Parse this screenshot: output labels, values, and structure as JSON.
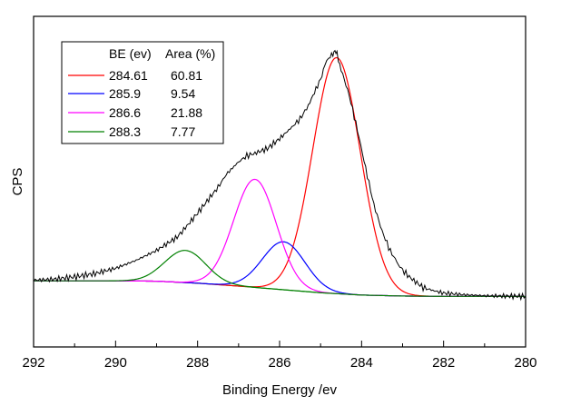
{
  "chart_data": {
    "type": "line",
    "xlabel": "Binding Energy /ev",
    "ylabel": "CPS",
    "xlim": [
      292,
      280
    ],
    "x_reversed": true,
    "y_ticks_shown": false,
    "grid": false,
    "x_ticks": [
      "292",
      "290",
      "288",
      "286",
      "284",
      "282",
      "280"
    ],
    "legend": {
      "position": "top-left",
      "headers": [
        "BE (ev)",
        "Area (%)"
      ],
      "rows": [
        {
          "be": "284.61",
          "area": "60.81",
          "color": "#ff0000"
        },
        {
          "be": "285.9",
          "area": "9.54",
          "color": "#0000ff"
        },
        {
          "be": "286.6",
          "area": "21.88",
          "color": "#ff00ff"
        },
        {
          "be": "288.3",
          "area": "7.77",
          "color": "#008000"
        }
      ]
    },
    "ylim": [
      0,
      1
    ],
    "background": {
      "color": "#008000",
      "x": [
        292,
        290,
        289,
        288,
        287,
        286,
        285,
        284,
        283,
        282,
        281,
        280
      ],
      "y": [
        0.2,
        0.2,
        0.199,
        0.193,
        0.184,
        0.174,
        0.164,
        0.157,
        0.154,
        0.153,
        0.153,
        0.153
      ]
    },
    "components": [
      {
        "center": 284.61,
        "peak_y": 0.875,
        "sigma": 0.58,
        "color": "#ff0000"
      },
      {
        "center": 285.9,
        "peak_y": 0.318,
        "sigma": 0.52,
        "color": "#0000ff"
      },
      {
        "center": 286.6,
        "peak_y": 0.507,
        "sigma": 0.52,
        "color": "#ff00ff"
      },
      {
        "center": 288.3,
        "peak_y": 0.292,
        "sigma": 0.5,
        "color": "#008000"
      }
    ],
    "series": [
      {
        "color": "#000000",
        "x": [
          292,
          291.5,
          291,
          290.5,
          290,
          289.5,
          289,
          288.5,
          288.3,
          288,
          287.5,
          287.3,
          287,
          286.8,
          286.6,
          286.3,
          286,
          285.7,
          285.5,
          285.3,
          285,
          284.9,
          284.8,
          284.7,
          284.65,
          284.6,
          284.5,
          284.3,
          284.1,
          283.9,
          283.7,
          283.5,
          283.3,
          283.1,
          283,
          282.8,
          282.5,
          282.3,
          282,
          281.5,
          281,
          280.5,
          280
        ],
        "y": [
          0.202,
          0.205,
          0.212,
          0.222,
          0.238,
          0.262,
          0.292,
          0.332,
          0.36,
          0.405,
          0.483,
          0.522,
          0.56,
          0.578,
          0.586,
          0.6,
          0.63,
          0.665,
          0.69,
          0.73,
          0.81,
          0.85,
          0.87,
          0.888,
          0.895,
          0.885,
          0.84,
          0.76,
          0.655,
          0.54,
          0.43,
          0.35,
          0.29,
          0.25,
          0.232,
          0.208,
          0.18,
          0.172,
          0.163,
          0.158,
          0.155,
          0.154,
          0.153
        ]
      }
    ]
  }
}
